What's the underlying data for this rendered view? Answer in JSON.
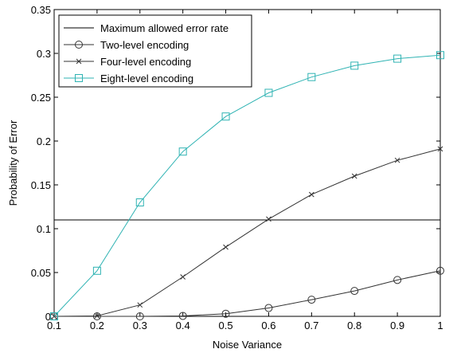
{
  "chart_data": {
    "type": "line",
    "xlabel": "Noise Variance",
    "ylabel": "Probability of Error",
    "xlim": [
      0.1,
      1
    ],
    "ylim": [
      0,
      0.35
    ],
    "x_ticks": [
      "0.1",
      "0.2",
      "0.3",
      "0.4",
      "0.5",
      "0.6",
      "0.7",
      "0.8",
      "0.9",
      "1"
    ],
    "y_ticks": [
      "0",
      "0.05",
      "0.1",
      "0.15",
      "0.2",
      "0.25",
      "0.3",
      "0.35"
    ],
    "grid": false,
    "legend_position": "top-left",
    "x": [
      0.1,
      0.2,
      0.3,
      0.4,
      0.5,
      0.6,
      0.7,
      0.8,
      0.9,
      1.0
    ],
    "series": [
      {
        "name": "Maximum allowed error rate",
        "marker": "none",
        "color": "#000000",
        "values": [
          0.11,
          0.11,
          0.11,
          0.11,
          0.11,
          0.11,
          0.11,
          0.11,
          0.11,
          0.11
        ]
      },
      {
        "name": "Two-level encoding",
        "marker": "circle",
        "color": "#333333",
        "values": [
          0.0,
          0.0,
          0.0,
          0.0005,
          0.003,
          0.0095,
          0.019,
          0.029,
          0.0415,
          0.052
        ]
      },
      {
        "name": "Four-level encoding",
        "marker": "x",
        "color": "#333333",
        "values": [
          0.0,
          0.0005,
          0.013,
          0.045,
          0.079,
          0.111,
          0.139,
          0.16,
          0.178,
          0.191
        ]
      },
      {
        "name": "Eight-level encoding",
        "marker": "square",
        "color": "#2fb3b3",
        "values": [
          0.0,
          0.052,
          0.13,
          0.188,
          0.228,
          0.255,
          0.273,
          0.286,
          0.294,
          0.298
        ]
      }
    ]
  }
}
